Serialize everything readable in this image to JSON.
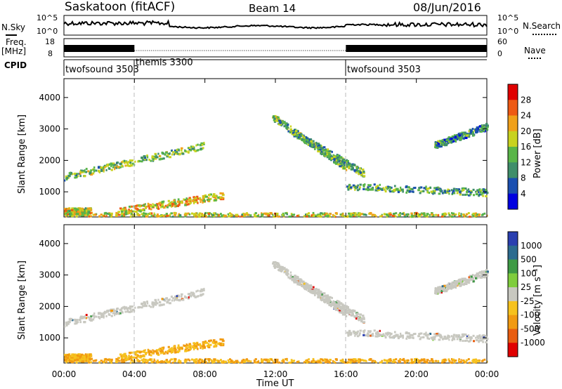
{
  "header": {
    "station": "Saskatoon (fitACF)",
    "beam": "Beam 14",
    "date": "08/Jun/2016"
  },
  "nsky_panel": {
    "left_label": "N.Sky",
    "right_label": "N.Search",
    "left_ticks": [
      "10^5",
      "10^0"
    ],
    "right_ticks": [
      "10^5",
      "10^0"
    ]
  },
  "freq_panel": {
    "left_label_1": "Freq.",
    "left_label_2": "[MHz]",
    "right_label": "Nave",
    "left_ticks": [
      "18",
      "8"
    ],
    "right_ticks": [
      "60",
      "0"
    ]
  },
  "cpid_panel": {
    "label": "CPID",
    "segments": [
      {
        "name": "twofsound 3503",
        "start_hour": 0,
        "end_hour": 4
      },
      {
        "name": "themis 3300",
        "start_hour": 4,
        "end_hour": 16
      },
      {
        "name": "twofsound 3503",
        "start_hour": 16,
        "end_hour": 24
      }
    ]
  },
  "power_panel": {
    "ylabel": "Slant Range [km]",
    "yticks": [
      "4000",
      "3000",
      "2000",
      "1000"
    ],
    "colorbar_label": "Power [dB]",
    "colorbar_ticks": [
      "28",
      "24",
      "20",
      "16",
      "12",
      "8",
      "4"
    ],
    "colors": [
      "#0000e0",
      "#1a4fb0",
      "#3f8e6a",
      "#59b548",
      "#c8d21f",
      "#f0a01a",
      "#ee5a14",
      "#e00000"
    ]
  },
  "velocity_panel": {
    "ylabel": "Slant Range [km]",
    "yticks": [
      "4000",
      "3000",
      "2000",
      "1000"
    ],
    "colorbar_label": "Velocity [m s⁻¹]",
    "colorbar_ticks": [
      "1000",
      "500",
      "100",
      "25",
      "-25",
      "-100",
      "-500",
      "-1000"
    ],
    "colors": [
      "#2a3fb0",
      "#2c6b8f",
      "#3e9a45",
      "#7fcd3d",
      "#c8c8c0",
      "#f6c21e",
      "#f19a12",
      "#e85d10",
      "#e00000"
    ]
  },
  "xaxis": {
    "label": "Time UT",
    "ticks": [
      "00:00",
      "04:00",
      "08:00",
      "12:00",
      "16:00",
      "20:00",
      "00:00"
    ]
  },
  "chart_data": {
    "type": "heatmap",
    "title": "Saskatoon (fitACF)",
    "subtitle": "Beam 14",
    "xlabel": "Time UT",
    "ylabel": "Slant Range [km]",
    "xlim": [
      0,
      24
    ],
    "ylim": [
      200,
      4600
    ],
    "features": [
      {
        "name": "early band",
        "start_hour": 0,
        "end_hour": 8,
        "start_range": 1500,
        "end_range": 2500,
        "power_db": 14
      },
      {
        "name": "near range 1",
        "start_hour": 0,
        "end_hour": 1.5,
        "start_range": 400,
        "end_range": 400,
        "power_db": 18
      },
      {
        "name": "near range 2",
        "start_hour": 3,
        "end_hour": 9,
        "start_range": 400,
        "end_range": 900,
        "power_db": 20
      },
      {
        "name": "arc 1",
        "start_hour": 11.8,
        "end_hour": 16,
        "start_range": 3400,
        "end_range": 1800,
        "power_db": 14
      },
      {
        "name": "arc 2",
        "start_hour": 13,
        "end_hour": 17,
        "start_range": 2900,
        "end_range": 1600,
        "power_db": 12
      },
      {
        "name": "late band",
        "start_hour": 16,
        "end_hour": 24,
        "start_range": 1200,
        "end_range": 1000,
        "power_db": 12
      },
      {
        "name": "late upper",
        "start_hour": 21,
        "end_hour": 24,
        "start_range": 2500,
        "end_range": 3100,
        "power_db": 10
      },
      {
        "name": "ground scatter",
        "start_hour": 0,
        "end_hour": 24,
        "start_range": 300,
        "end_range": 300,
        "power_db": 18
      }
    ]
  }
}
